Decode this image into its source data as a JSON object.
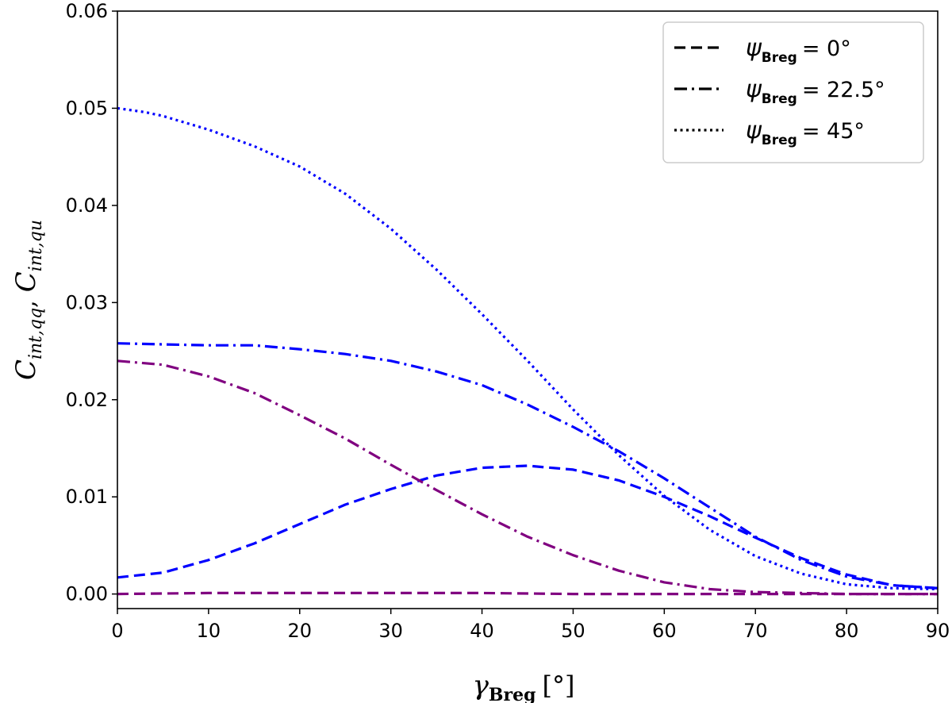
{
  "chart_data": {
    "type": "line",
    "xlabel": "γBreg [°]",
    "xlabel_main": "γ",
    "xlabel_sub": "Breg",
    "xlabel_unit": "[°]",
    "ylabel": "Cint,qq, Cint,qu",
    "ylabel_c1": "C",
    "ylabel_s1": "int,qq",
    "ylabel_sep": ",",
    "ylabel_c2": "C",
    "ylabel_s2": "int,qu",
    "xlim": [
      0,
      90
    ],
    "ylim": [
      -0.0015,
      0.06
    ],
    "xticks": [
      0,
      10,
      20,
      30,
      40,
      50,
      60,
      70,
      80,
      90
    ],
    "yticks": [
      0.0,
      0.01,
      0.02,
      0.03,
      0.04,
      0.05,
      0.06
    ],
    "ytick_labels": [
      "0.00",
      "0.01",
      "0.02",
      "0.03",
      "0.04",
      "0.05",
      "0.06"
    ],
    "legend_position": "top-right",
    "legend": [
      {
        "symbol": "ψ",
        "sub": "Breg",
        "rest": "= 0°",
        "style": "dashed"
      },
      {
        "symbol": "ψ",
        "sub": "Breg",
        "rest": "= 22.5°",
        "style": "dashdot"
      },
      {
        "symbol": "ψ",
        "sub": "Breg",
        "rest": "= 45°",
        "style": "dotted"
      }
    ],
    "colors": {
      "blue": "#0000ff",
      "purple": "#800080"
    },
    "series": [
      {
        "name": "ψBreg = 0° (qq)",
        "style": "dashed",
        "color": "#0000ff",
        "x": [
          0,
          5,
          10,
          15,
          20,
          25,
          30,
          35,
          40,
          45,
          50,
          55,
          60,
          65,
          70,
          75,
          80,
          85,
          90
        ],
        "y": [
          0.0017,
          0.0022,
          0.0035,
          0.0052,
          0.0072,
          0.0092,
          0.0108,
          0.0122,
          0.013,
          0.0132,
          0.0128,
          0.0117,
          0.01,
          0.008,
          0.0058,
          0.0037,
          0.002,
          0.0009,
          0.0006
        ]
      },
      {
        "name": "ψBreg = 0° (qu)",
        "style": "dashed",
        "color": "#800080",
        "x": [
          0,
          10,
          20,
          30,
          40,
          50,
          60,
          70,
          80,
          90
        ],
        "y": [
          0.0,
          0.0001,
          0.0001,
          0.0001,
          0.0001,
          0.0,
          0.0,
          0.0,
          0.0,
          0.0
        ]
      },
      {
        "name": "ψBreg = 22.5° (qq)",
        "style": "dashdot",
        "color": "#0000ff",
        "x": [
          0,
          5,
          10,
          15,
          20,
          25,
          30,
          35,
          40,
          45,
          50,
          55,
          60,
          65,
          70,
          75,
          80,
          85,
          90
        ],
        "y": [
          0.0258,
          0.0257,
          0.0256,
          0.0256,
          0.0252,
          0.0247,
          0.024,
          0.0229,
          0.0215,
          0.0195,
          0.0172,
          0.0147,
          0.0119,
          0.0089,
          0.0059,
          0.0035,
          0.0018,
          0.0009,
          0.0006
        ]
      },
      {
        "name": "ψBreg = 22.5° (qu)",
        "style": "dashdot",
        "color": "#800080",
        "x": [
          0,
          5,
          10,
          15,
          20,
          25,
          30,
          35,
          40,
          45,
          50,
          55,
          60,
          65,
          70,
          75,
          80,
          85,
          90
        ],
        "y": [
          0.024,
          0.0236,
          0.0224,
          0.0207,
          0.0184,
          0.016,
          0.0133,
          0.0107,
          0.0082,
          0.0059,
          0.004,
          0.0024,
          0.0012,
          0.0005,
          0.0002,
          0.0001,
          0.0,
          0.0,
          0.0
        ]
      },
      {
        "name": "ψBreg = 45° (qq)",
        "style": "dotted",
        "color": "#0000ff",
        "x": [
          0,
          3,
          5,
          10,
          15,
          20,
          25,
          30,
          35,
          40,
          45,
          50,
          55,
          60,
          65,
          70,
          75,
          80,
          85,
          90
        ],
        "y": [
          0.05,
          0.0496,
          0.0492,
          0.0478,
          0.0461,
          0.044,
          0.0412,
          0.0376,
          0.0334,
          0.0288,
          0.024,
          0.019,
          0.0143,
          0.0101,
          0.0066,
          0.0039,
          0.0021,
          0.001,
          0.0006,
          0.0005
        ]
      }
    ]
  }
}
